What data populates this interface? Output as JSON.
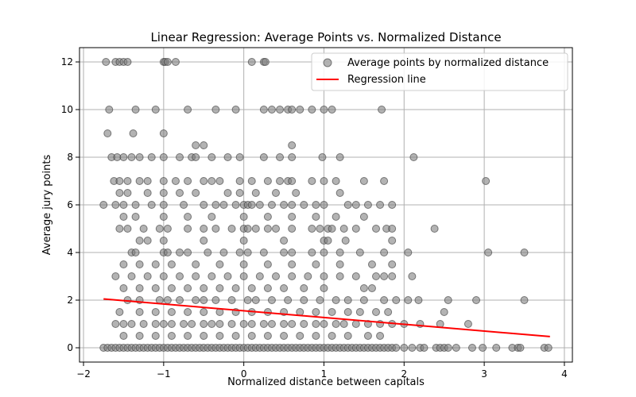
{
  "chart_data": {
    "type": "scatter",
    "title": "Linear Regression: Average Points vs. Normalized Distance",
    "xlabel": "Normalized distance between capitals",
    "ylabel": "Average jury points",
    "xlim": [
      -2.05,
      4.1
    ],
    "ylim": [
      -0.6,
      12.6
    ],
    "xticks": [
      -2,
      -1,
      0,
      1,
      2,
      3,
      4
    ],
    "yticks": [
      0,
      2,
      4,
      6,
      8,
      10,
      12
    ],
    "grid": true,
    "legend": "top-right",
    "series": [
      {
        "name": "Average points by normalized distance",
        "kind": "scatter",
        "color": "#808080",
        "x": [
          -1.72,
          -1.6,
          -1.55,
          -1.5,
          -1.45,
          -1.0,
          -0.98,
          -0.95,
          -0.85,
          0.1,
          0.25,
          0.27,
          -1.68,
          -1.35,
          -1.1,
          -0.7,
          -0.35,
          -0.1,
          0.25,
          0.35,
          0.45,
          0.55,
          0.6,
          0.7,
          0.85,
          1.0,
          1.1,
          1.72,
          -1.7,
          -1.38,
          -1.0,
          -0.6,
          -0.5,
          -1.65,
          -1.58,
          -1.5,
          -1.4,
          -1.3,
          -1.15,
          -1.0,
          -0.8,
          -0.65,
          -0.6,
          -0.4,
          -0.2,
          -0.05,
          0.25,
          0.45,
          0.6,
          0.6,
          0.98,
          1.2,
          2.12,
          -1.62,
          -1.55,
          -1.45,
          -1.3,
          -1.2,
          -1.0,
          -0.85,
          -0.7,
          -0.5,
          -0.4,
          -0.3,
          -0.05,
          0.1,
          0.3,
          0.45,
          0.55,
          0.6,
          0.85,
          1.0,
          1.15,
          1.5,
          1.75,
          3.02,
          -1.55,
          -1.45,
          -1.2,
          -1.0,
          -0.8,
          -0.6,
          -0.2,
          -0.05,
          0.15,
          0.4,
          0.65,
          1.2,
          -1.75,
          -1.6,
          -1.5,
          -1.35,
          -1.15,
          -1.0,
          -0.75,
          -0.5,
          -0.35,
          -0.25,
          -0.1,
          0.0,
          0.05,
          0.1,
          0.2,
          0.35,
          0.5,
          0.6,
          0.75,
          0.9,
          1.0,
          1.3,
          1.4,
          1.55,
          1.7,
          1.85,
          -1.5,
          -1.35,
          -1.0,
          -0.7,
          -0.4,
          0.0,
          0.3,
          0.6,
          0.9,
          1.15,
          1.5,
          -1.55,
          -1.45,
          -1.25,
          -1.05,
          -0.95,
          -0.7,
          -0.5,
          -0.35,
          -0.15,
          0.0,
          0.05,
          0.15,
          0.3,
          0.4,
          0.6,
          0.85,
          0.95,
          1.05,
          1.1,
          1.25,
          1.4,
          1.65,
          1.78,
          1.85,
          2.38,
          -1.3,
          -1.2,
          -1.0,
          -0.5,
          0.0,
          0.5,
          1.0,
          1.05,
          1.27,
          1.85,
          -1.4,
          -1.35,
          -1.0,
          -0.95,
          -0.8,
          -0.7,
          -0.45,
          -0.25,
          -0.05,
          0.05,
          0.25,
          0.5,
          0.6,
          0.85,
          1.0,
          1.2,
          1.45,
          1.75,
          2.05,
          3.05,
          3.5,
          -1.5,
          -1.3,
          -1.1,
          -0.9,
          -0.6,
          -0.3,
          0.0,
          0.3,
          0.6,
          0.9,
          1.2,
          1.6,
          1.85,
          -1.6,
          -1.4,
          -1.2,
          -1.0,
          -0.8,
          -0.6,
          -0.4,
          -0.2,
          0.0,
          0.2,
          0.4,
          0.6,
          0.8,
          1.0,
          1.2,
          1.4,
          1.65,
          1.75,
          1.85,
          2.1,
          -1.5,
          -1.3,
          -1.1,
          -0.9,
          -0.7,
          -0.5,
          -0.3,
          -0.1,
          0.1,
          0.3,
          0.5,
          0.75,
          1.0,
          1.5,
          1.6,
          -1.45,
          -1.3,
          -1.05,
          -0.95,
          -0.8,
          -0.6,
          -0.5,
          -0.35,
          -0.15,
          0.05,
          0.15,
          0.35,
          0.55,
          0.75,
          0.95,
          1.15,
          1.3,
          1.5,
          1.75,
          1.9,
          2.05,
          2.18,
          2.55,
          2.9,
          3.5,
          -1.55,
          -1.3,
          -1.1,
          -0.9,
          -0.7,
          -0.5,
          -0.3,
          -0.1,
          0.1,
          0.3,
          0.5,
          0.7,
          0.9,
          1.1,
          1.3,
          1.45,
          1.65,
          1.8,
          2.5,
          -1.6,
          -1.5,
          -1.4,
          -1.25,
          -1.1,
          -1.0,
          -0.9,
          -0.75,
          -0.65,
          -0.5,
          -0.4,
          -0.3,
          -0.15,
          0.0,
          0.1,
          0.25,
          0.35,
          0.5,
          0.6,
          0.75,
          0.9,
          1.0,
          1.15,
          1.25,
          1.4,
          1.55,
          1.7,
          1.85,
          2.0,
          2.2,
          2.45,
          2.8,
          -1.5,
          -1.3,
          -1.1,
          -0.9,
          -0.7,
          -0.5,
          -0.3,
          -0.1,
          0.1,
          0.3,
          0.5,
          0.7,
          0.9,
          1.1,
          1.3,
          1.55,
          1.7,
          -1.75,
          -1.7,
          -1.65,
          -1.6,
          -1.55,
          -1.5,
          -1.45,
          -1.4,
          -1.35,
          -1.3,
          -1.25,
          -1.2,
          -1.15,
          -1.1,
          -1.05,
          -1.0,
          -0.95,
          -0.9,
          -0.85,
          -0.8,
          -0.75,
          -0.7,
          -0.65,
          -0.6,
          -0.55,
          -0.5,
          -0.45,
          -0.4,
          -0.35,
          -0.3,
          -0.25,
          -0.2,
          -0.15,
          -0.1,
          -0.05,
          0.0,
          0.05,
          0.1,
          0.15,
          0.2,
          0.25,
          0.3,
          0.35,
          0.4,
          0.45,
          0.5,
          0.55,
          0.6,
          0.65,
          0.7,
          0.75,
          0.8,
          0.85,
          0.9,
          0.95,
          1.0,
          1.05,
          1.1,
          1.15,
          1.2,
          1.25,
          1.3,
          1.35,
          1.4,
          1.45,
          1.5,
          1.55,
          1.6,
          1.65,
          1.7,
          1.75,
          1.8,
          1.85,
          1.9,
          2.0,
          2.1,
          2.2,
          2.25,
          2.4,
          2.45,
          2.5,
          2.55,
          2.65,
          2.85,
          2.98,
          3.15,
          3.35,
          3.42,
          3.45,
          3.75,
          3.8
        ],
        "y": [
          12,
          12,
          12,
          12,
          12,
          12,
          12,
          12,
          12,
          12,
          12,
          12,
          10,
          10,
          10,
          10,
          10,
          10,
          10,
          10,
          10,
          10,
          10,
          10,
          10,
          10,
          10,
          10,
          9,
          9,
          9,
          8.5,
          8.5,
          8,
          8,
          8,
          8,
          8,
          8,
          8,
          8,
          8,
          8,
          8,
          8,
          8,
          8,
          8,
          8.5,
          8,
          8,
          8,
          8,
          7,
          7,
          7,
          7,
          7,
          7,
          7,
          7,
          7,
          7,
          7,
          7,
          7,
          7,
          7,
          7,
          7,
          7,
          7,
          7,
          7,
          7,
          7,
          6.5,
          6.5,
          6.5,
          6.5,
          6.5,
          6.5,
          6.5,
          6.5,
          6.5,
          6.5,
          6.5,
          6.5,
          6,
          6,
          6,
          6,
          6,
          6,
          6,
          6,
          6,
          6,
          6,
          6,
          6,
          6,
          6,
          6,
          6,
          6,
          6,
          6,
          6,
          6,
          6,
          6,
          6,
          6,
          5.5,
          5.5,
          5.5,
          5.5,
          5.5,
          5.5,
          5.5,
          5.5,
          5.5,
          5.5,
          5.5,
          5,
          5,
          5,
          5,
          5,
          5,
          5,
          5,
          5,
          5,
          5,
          5,
          5,
          5,
          5,
          5,
          5,
          5,
          5,
          5,
          5,
          5,
          5,
          5,
          5,
          4.5,
          4.5,
          4.5,
          4.5,
          4.5,
          4.5,
          4.5,
          4.5,
          4.5,
          4.5,
          4,
          4,
          4,
          4,
          4,
          4,
          4,
          4,
          4,
          4,
          4,
          4,
          4,
          4,
          4,
          4,
          4,
          4,
          4,
          4,
          4,
          3.5,
          3.5,
          3.5,
          3.5,
          3.5,
          3.5,
          3.5,
          3.5,
          3.5,
          3.5,
          3.5,
          3.5,
          3.5,
          3,
          3,
          3,
          3,
          3,
          3,
          3,
          3,
          3,
          3,
          3,
          3,
          3,
          3,
          3,
          3,
          3,
          3,
          3,
          3,
          2.5,
          2.5,
          2.5,
          2.5,
          2.5,
          2.5,
          2.5,
          2.5,
          2.5,
          2.5,
          2.5,
          2.5,
          2.5,
          2.5,
          2.5,
          2,
          2,
          2,
          2,
          2,
          2,
          2,
          2,
          2,
          2,
          2,
          2,
          2,
          2,
          2,
          2,
          2,
          2,
          2,
          2,
          2,
          2,
          2,
          2,
          2,
          1.5,
          1.5,
          1.5,
          1.5,
          1.5,
          1.5,
          1.5,
          1.5,
          1.5,
          1.5,
          1.5,
          1.5,
          1.5,
          1.5,
          1.5,
          1.5,
          1.5,
          1.5,
          1.5,
          1,
          1,
          1,
          1,
          1,
          1,
          1,
          1,
          1,
          1,
          1,
          1,
          1,
          1,
          1,
          1,
          1,
          1,
          1,
          1,
          1,
          1,
          1,
          1,
          1,
          1,
          1,
          1,
          1,
          1,
          1,
          1,
          0.5,
          0.5,
          0.5,
          0.5,
          0.5,
          0.5,
          0.5,
          0.5,
          0.5,
          0.5,
          0.5,
          0.5,
          0.5,
          0.5,
          0.5,
          0.5,
          0.5,
          0,
          0,
          0,
          0,
          0,
          0,
          0,
          0,
          0,
          0,
          0,
          0,
          0,
          0,
          0,
          0,
          0,
          0,
          0,
          0,
          0,
          0,
          0,
          0,
          0,
          0,
          0,
          0,
          0,
          0,
          0,
          0,
          0,
          0,
          0,
          0,
          0,
          0,
          0,
          0,
          0,
          0,
          0,
          0,
          0,
          0,
          0,
          0,
          0,
          0,
          0,
          0,
          0,
          0,
          0,
          0,
          0,
          0,
          0,
          0,
          0,
          0,
          0,
          0,
          0,
          0,
          0,
          0,
          0,
          0,
          0,
          0,
          0,
          0,
          0,
          0,
          0,
          0,
          0,
          0,
          0,
          0,
          0,
          0,
          0,
          0,
          0,
          0,
          0,
          0,
          0
        ]
      },
      {
        "name": "Regression line",
        "kind": "line",
        "color": "#ff0000",
        "x": [
          -1.75,
          3.82
        ],
        "y": [
          2.05,
          0.47
        ]
      }
    ]
  }
}
